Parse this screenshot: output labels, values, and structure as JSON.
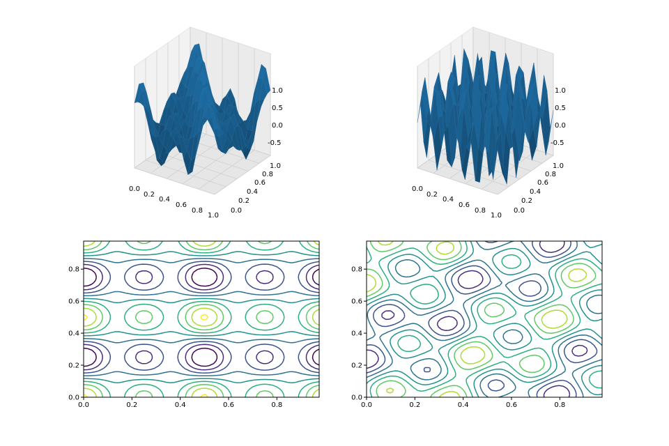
{
  "chart_data": [
    {
      "type": "surface",
      "position": "top-left",
      "surface_color": "#1f77b4",
      "x_ticks": [
        "0.0",
        "0.2",
        "0.4",
        "0.6",
        "0.8",
        "1.0"
      ],
      "y_ticks": [
        "0.0",
        "0.2",
        "0.4",
        "0.6",
        "0.8",
        "1.0"
      ],
      "z_ticks": [
        "-0.5",
        "0.0",
        "0.5",
        "1.0"
      ],
      "xlim": [
        0,
        1
      ],
      "ylim": [
        0,
        1
      ],
      "zlim": [
        -0.8,
        1.0
      ],
      "grid": true
    },
    {
      "type": "surface",
      "position": "top-right",
      "surface_color": "#1f77b4",
      "x_ticks": [
        "0.0",
        "0.2",
        "0.4",
        "0.6",
        "0.8",
        "1.0"
      ],
      "y_ticks": [
        "0.0",
        "0.2",
        "0.4",
        "0.6",
        "0.8",
        "1.0"
      ],
      "z_ticks": [
        "-0.5",
        "0.0",
        "0.5",
        "1.0"
      ],
      "xlim": [
        0,
        1
      ],
      "ylim": [
        0,
        1
      ],
      "zlim": [
        -0.8,
        1.0
      ],
      "grid": true
    },
    {
      "type": "contour",
      "position": "bottom-left",
      "colormap": "viridis",
      "x_ticks": [
        "0.0",
        "0.2",
        "0.4",
        "0.6",
        "0.8"
      ],
      "y_ticks": [
        "0.0",
        "0.2",
        "0.4",
        "0.6",
        "0.8"
      ],
      "xlim": [
        0,
        0.975
      ],
      "ylim": [
        0,
        0.975
      ],
      "levels": [
        -0.8,
        -0.6,
        -0.4,
        -0.2,
        0.0,
        0.2,
        0.4,
        0.6,
        0.8
      ]
    },
    {
      "type": "contour",
      "position": "bottom-right",
      "colormap": "viridis",
      "x_ticks": [
        "0.0",
        "0.2",
        "0.4",
        "0.6",
        "0.8"
      ],
      "y_ticks": [
        "0.0",
        "0.2",
        "0.4",
        "0.6",
        "0.8"
      ],
      "xlim": [
        0,
        0.975
      ],
      "ylim": [
        0,
        0.975
      ],
      "levels": [
        -0.8,
        -0.6,
        -0.4,
        -0.2,
        0.0,
        0.2,
        0.4,
        0.6,
        0.8
      ]
    }
  ]
}
